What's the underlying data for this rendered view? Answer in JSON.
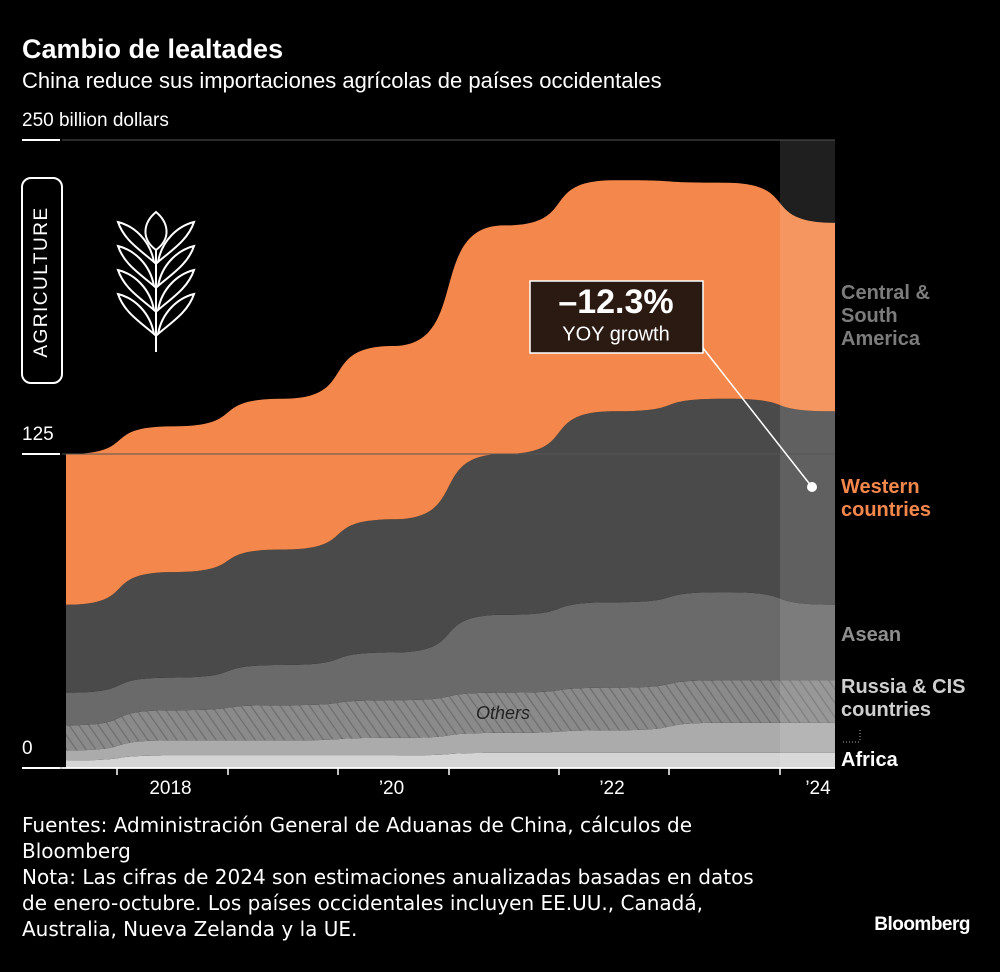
{
  "chart_data": {
    "type": "stacked-area",
    "title": "Cambio de lealtades",
    "subtitle": "China reduce sus importaciones agrícolas de países occidentales",
    "badge": "AGRICULTURE",
    "categories": [
      null,
      "2018",
      null,
      "’20",
      null,
      "’22",
      null,
      "’24"
    ],
    "series": [
      {
        "name": "Africa",
        "color": "#d4d4d4",
        "values": [
          3,
          5,
          5,
          5,
          6,
          6,
          6,
          6
        ]
      },
      {
        "name": "Russia & CIS countries",
        "color": "#ababab",
        "values": [
          4,
          6,
          6,
          7,
          8,
          9,
          12,
          12
        ]
      },
      {
        "name": "Others",
        "color": "#8a8a8a",
        "values": [
          10,
          12,
          14,
          15,
          16,
          17,
          17,
          17
        ]
      },
      {
        "name": "Asean",
        "color": "#6a6a6a",
        "values": [
          13,
          13,
          16,
          19,
          31,
          34,
          35,
          30
        ]
      },
      {
        "name": "Central & South America",
        "color": "#4a4a4a",
        "values": [
          35,
          42,
          46,
          53,
          64,
          76,
          77,
          77
        ]
      },
      {
        "name": "Western countries",
        "color": "#f4874b",
        "values": [
          60,
          58,
          60,
          69,
          91,
          92,
          86,
          75
        ]
      }
    ],
    "ylim": [
      0,
      250
    ],
    "yticks": [
      0,
      125,
      {
        "value": 250,
        "label": "250 billion dollars"
      }
    ],
    "grid": true,
    "annotation": {
      "value": "–12.3%",
      "text": "YOY growth"
    },
    "source": "Fuentes: Administración General de Aduanas de China, cálculos de Bloomberg",
    "note": "Nota: Las cifras de 2024 son estimaciones anualizadas basadas en datos de enero-octubre. Los países occidentales incluyen EE.UU., Canadá, Australia, Nueva Zelanda y la UE.",
    "brand": "Bloomberg"
  }
}
